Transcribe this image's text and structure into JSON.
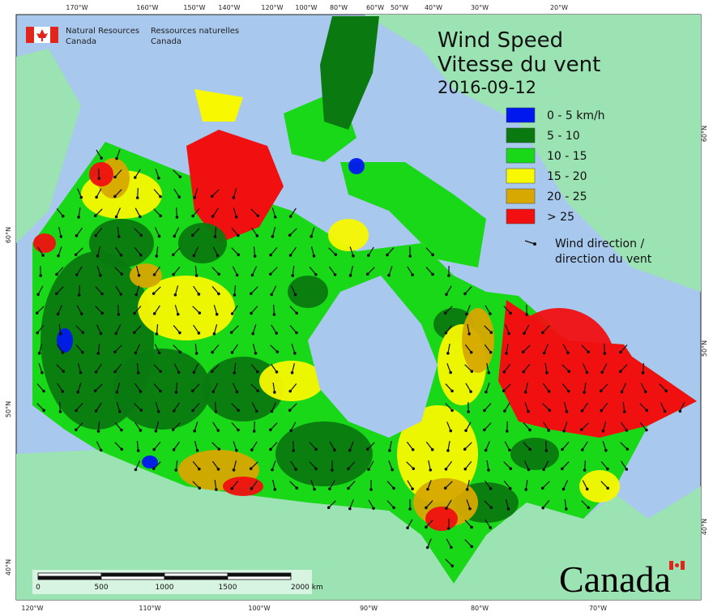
{
  "header": {
    "agency_en": [
      "Natural Resources",
      "Canada"
    ],
    "agency_fr": [
      "Ressources naturelles",
      "Canada"
    ]
  },
  "title": [
    "Wind Speed",
    "Vitesse du vent",
    "2016-09-12"
  ],
  "legend": {
    "items": [
      {
        "label": "0 - 5 km/h",
        "color": "#0018f0"
      },
      {
        "label": "5 - 10",
        "color": "#0a7a10"
      },
      {
        "label": "10 - 15",
        "color": "#18d818"
      },
      {
        "label": "15 - 20",
        "color": "#f8f800"
      },
      {
        "label": "20 - 25",
        "color": "#d8a800"
      },
      {
        "label": "> 25",
        "color": "#f01010"
      }
    ],
    "arrow": [
      "Wind direction /",
      "direction du vent"
    ]
  },
  "graticule": {
    "top": [
      "170°W",
      "160°W",
      "150°W",
      "140°W",
      "120°W",
      "100°W",
      "80°W",
      "60°W",
      "50°W",
      "40°W",
      "30°W",
      "20°W"
    ],
    "bottom": [
      "120°W",
      "110°W",
      "100°W",
      "90°W",
      "80°W",
      "70°W"
    ],
    "left": [
      "60°N",
      "50°N",
      "40°N"
    ],
    "right": [
      "60°N",
      "50°N",
      "40°N"
    ]
  },
  "scale_bar": [
    "0",
    "500",
    "1000",
    "1500",
    "2000 km"
  ],
  "wordmark": "Canada"
}
